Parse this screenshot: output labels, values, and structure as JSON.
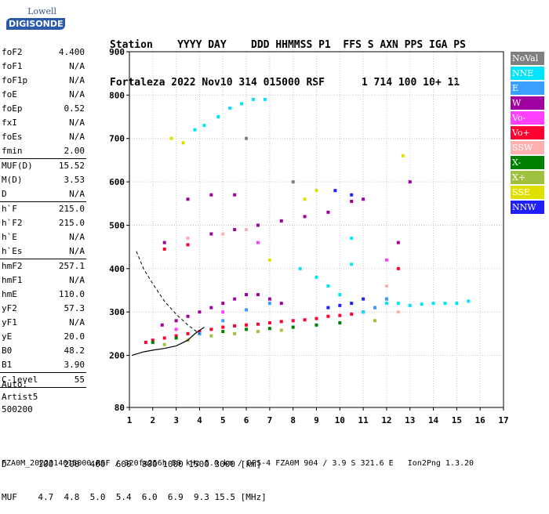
{
  "logo": {
    "top": "Lowell",
    "main": "DIGISONDE"
  },
  "header": {
    "line1": "Station    YYYY DAY    DDD HHMMSS P1  FFS S AXN PPS IGA PS",
    "line2": "Fortaleza 2022 Nov10 314 015000 RSF      1 714 100 10+ 11"
  },
  "params": [
    {
      "name": "foF2",
      "value": "4.400"
    },
    {
      "name": "foF1",
      "value": "N/A"
    },
    {
      "name": "foF1p",
      "value": "N/A"
    },
    {
      "name": "foE",
      "value": "N/A"
    },
    {
      "name": "foEp",
      "value": "0.52"
    },
    {
      "name": "fxI",
      "value": "N/A"
    },
    {
      "name": "foEs",
      "value": "N/A"
    },
    {
      "name": "fmin",
      "value": "2.00"
    },
    {
      "sep": true
    },
    {
      "name": "MUF(D)",
      "value": "15.52"
    },
    {
      "name": "M(D)",
      "value": "3.53"
    },
    {
      "name": "D",
      "value": "N/A"
    },
    {
      "sep": true
    },
    {
      "name": "h`F",
      "value": "215.0"
    },
    {
      "name": "h`F2",
      "value": "215.0"
    },
    {
      "name": "h`E",
      "value": "N/A"
    },
    {
      "name": "h`Es",
      "value": "N/A"
    },
    {
      "sep": true
    },
    {
      "name": "hmF2",
      "value": "257.1"
    },
    {
      "name": "hmF1",
      "value": "N/A"
    },
    {
      "name": "hmE",
      "value": "110.0"
    },
    {
      "name": "yF2",
      "value": "57.3"
    },
    {
      "name": "yF1",
      "value": "N/A"
    },
    {
      "name": "yE",
      "value": "20.0"
    },
    {
      "name": "B0",
      "value": "48.2"
    },
    {
      "name": "B1",
      "value": "3.90"
    },
    {
      "sep": true
    },
    {
      "name": "C-level",
      "value": "55"
    },
    {
      "sep": true
    }
  ],
  "auto": {
    "label": "Auto:",
    "artist": "Artist5",
    "version": "500200"
  },
  "legend": [
    {
      "label": "NoVal",
      "color": "#808080"
    },
    {
      "label": "NNE",
      "color": "#00e5ff"
    },
    {
      "label": "E",
      "color": "#3aa0ff"
    },
    {
      "label": "W",
      "color": "#a000a0"
    },
    {
      "label": "Vo-",
      "color": "#ff40ff"
    },
    {
      "label": "Vo+",
      "color": "#ff0030"
    },
    {
      "label": "SSW",
      "color": "#ffb0b0"
    },
    {
      "label": "X-",
      "color": "#008000"
    },
    {
      "label": "X+",
      "color": "#a0c040"
    },
    {
      "label": "SSE",
      "color": "#e0e000"
    },
    {
      "label": "NNW",
      "color": "#2020ff"
    }
  ],
  "footer": {
    "d_line": "D      100  200  400  600  800 1000 1500 3000 [km]",
    "muf_line": "MUF    4.7  4.8  5.0  5.4  6.0  6.9  9.3 15.5 [MHz]",
    "info": "FZA0M_2022314015000.RSF / 320fx256h 50 kHz 5.0 km / DPS-4 FZA0M 904 / 3.9 S 321.6 E   Ion2Png 1.3.20"
  },
  "chart_data": {
    "type": "scatter",
    "x_label": "",
    "y_label": "",
    "xlim": [
      1,
      17
    ],
    "ylim": [
      80,
      900
    ],
    "x_ticks": [
      1,
      2,
      3,
      4,
      5,
      6,
      7,
      8,
      9,
      10,
      11,
      12,
      13,
      14,
      15,
      16,
      17
    ],
    "y_ticks": [
      80,
      200,
      300,
      400,
      500,
      600,
      700,
      800,
      900
    ],
    "series": [
      {
        "color": "#a000a0",
        "points": [
          [
            2.4,
            270
          ],
          [
            3,
            280
          ],
          [
            3.5,
            290
          ],
          [
            4,
            300
          ],
          [
            4.5,
            310
          ],
          [
            5,
            320
          ],
          [
            5.5,
            330
          ],
          [
            6,
            340
          ],
          [
            6.5,
            340
          ],
          [
            7,
            330
          ],
          [
            7.5,
            320
          ],
          [
            2.5,
            460
          ],
          [
            3.5,
            470
          ],
          [
            4.5,
            480
          ],
          [
            5.5,
            490
          ],
          [
            6.5,
            500
          ],
          [
            7.5,
            510
          ],
          [
            8.5,
            520
          ],
          [
            9.5,
            530
          ],
          [
            10.5,
            555
          ],
          [
            11,
            560
          ],
          [
            12.5,
            460
          ],
          [
            3.5,
            560
          ],
          [
            4.5,
            570
          ],
          [
            5.5,
            570
          ],
          [
            13,
            600
          ]
        ]
      },
      {
        "color": "#ff0030",
        "points": [
          [
            1.7,
            230
          ],
          [
            2,
            235
          ],
          [
            2.5,
            240
          ],
          [
            3,
            245
          ],
          [
            3.5,
            250
          ],
          [
            4,
            255
          ],
          [
            4.5,
            260
          ],
          [
            5,
            265
          ],
          [
            5.5,
            268
          ],
          [
            6,
            270
          ],
          [
            6.5,
            272
          ],
          [
            7,
            275
          ],
          [
            7.5,
            278
          ],
          [
            8,
            280
          ],
          [
            8.5,
            282
          ],
          [
            9,
            285
          ],
          [
            9.5,
            290
          ],
          [
            10,
            292
          ],
          [
            10.5,
            295
          ],
          [
            11,
            300
          ],
          [
            11.5,
            310
          ],
          [
            12,
            330
          ],
          [
            2.5,
            445
          ],
          [
            3.5,
            455
          ],
          [
            12.5,
            400
          ]
        ]
      },
      {
        "color": "#00e5ff",
        "points": [
          [
            3.8,
            720
          ],
          [
            4.2,
            730
          ],
          [
            4.8,
            750
          ],
          [
            5.3,
            770
          ],
          [
            5.8,
            780
          ],
          [
            6.3,
            790
          ],
          [
            6.8,
            790
          ],
          [
            8.3,
            400
          ],
          [
            9,
            380
          ],
          [
            9.5,
            360
          ],
          [
            10,
            340
          ],
          [
            10.5,
            410
          ],
          [
            10.5,
            470
          ],
          [
            11,
            300
          ],
          [
            12,
            320
          ],
          [
            12.5,
            320
          ],
          [
            13,
            315
          ],
          [
            13.5,
            318
          ],
          [
            14,
            320
          ],
          [
            14.5,
            320
          ],
          [
            15,
            320
          ],
          [
            15.5,
            325
          ]
        ]
      },
      {
        "color": "#2020ff",
        "points": [
          [
            9.5,
            310
          ],
          [
            10,
            315
          ],
          [
            10.5,
            320
          ],
          [
            11,
            330
          ],
          [
            9.8,
            580
          ],
          [
            10.5,
            570
          ]
        ]
      },
      {
        "color": "#008000",
        "points": [
          [
            2,
            230
          ],
          [
            3,
            240
          ],
          [
            4,
            250
          ],
          [
            5,
            255
          ],
          [
            6,
            260
          ],
          [
            7,
            262
          ],
          [
            8,
            265
          ],
          [
            9,
            270
          ],
          [
            10,
            275
          ]
        ]
      },
      {
        "color": "#a0c040",
        "points": [
          [
            2.5,
            225
          ],
          [
            3.5,
            235
          ],
          [
            4.5,
            245
          ],
          [
            5.5,
            250
          ],
          [
            6.5,
            255
          ],
          [
            7.5,
            258
          ],
          [
            11.5,
            280
          ]
        ]
      },
      {
        "color": "#3aa0ff",
        "points": [
          [
            4,
            250
          ],
          [
            5,
            280
          ],
          [
            6,
            305
          ],
          [
            7,
            320
          ],
          [
            11.5,
            310
          ],
          [
            12,
            330
          ]
        ]
      },
      {
        "color": "#ffb0b0",
        "points": [
          [
            3.5,
            470
          ],
          [
            5,
            480
          ],
          [
            6,
            490
          ],
          [
            12,
            360
          ],
          [
            12.5,
            300
          ]
        ]
      },
      {
        "color": "#e0e000",
        "points": [
          [
            2.8,
            700
          ],
          [
            3.3,
            690
          ],
          [
            7,
            420
          ],
          [
            8.5,
            560
          ],
          [
            9,
            580
          ],
          [
            12.7,
            660
          ]
        ]
      },
      {
        "color": "#ff40ff",
        "points": [
          [
            3,
            260
          ],
          [
            5,
            300
          ],
          [
            6.5,
            460
          ],
          [
            12,
            420
          ]
        ]
      },
      {
        "color": "#808080",
        "points": [
          [
            6,
            700
          ],
          [
            8,
            600
          ]
        ]
      }
    ],
    "profile_curve": [
      [
        1.1,
        200
      ],
      [
        1.6,
        208
      ],
      [
        2,
        212
      ],
      [
        2.5,
        216
      ],
      [
        3,
        222
      ],
      [
        3.5,
        235
      ],
      [
        3.8,
        250
      ],
      [
        4.2,
        265
      ]
    ],
    "oblique_curve": [
      [
        1.3,
        440
      ],
      [
        1.6,
        400
      ],
      [
        2,
        365
      ],
      [
        2.5,
        325
      ],
      [
        3,
        295
      ],
      [
        3.5,
        270
      ],
      [
        4,
        250
      ]
    ]
  }
}
